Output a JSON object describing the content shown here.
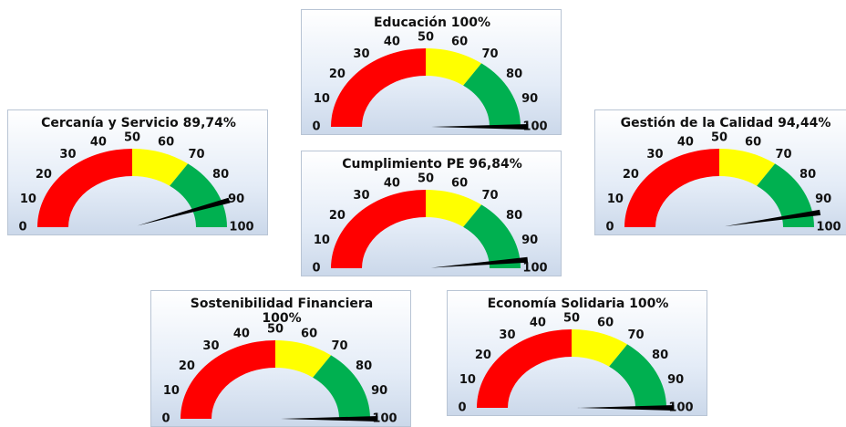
{
  "chart_data": [
    {
      "type": "gauge",
      "title": "Educación 100%",
      "value": 100,
      "ylim": [
        0,
        100
      ],
      "yticks": [
        0,
        10,
        20,
        30,
        40,
        50,
        60,
        70,
        80,
        90,
        100
      ],
      "bands": [
        {
          "from": 0,
          "to": 50,
          "color": "#ff0000"
        },
        {
          "from": 50,
          "to": 70,
          "color": "#ffff00"
        },
        {
          "from": 70,
          "to": 100,
          "color": "#00b050"
        }
      ]
    },
    {
      "type": "gauge",
      "title": "Cercanía y Servicio 89,74%",
      "value": 89.74,
      "ylim": [
        0,
        100
      ],
      "yticks": [
        0,
        10,
        20,
        30,
        40,
        50,
        60,
        70,
        80,
        90,
        100
      ],
      "bands": [
        {
          "from": 0,
          "to": 50,
          "color": "#ff0000"
        },
        {
          "from": 50,
          "to": 70,
          "color": "#ffff00"
        },
        {
          "from": 70,
          "to": 100,
          "color": "#00b050"
        }
      ]
    },
    {
      "type": "gauge",
      "title": "Cumplimiento PE 96,84%",
      "value": 96.84,
      "ylim": [
        0,
        100
      ],
      "yticks": [
        0,
        10,
        20,
        30,
        40,
        50,
        60,
        70,
        80,
        90,
        100
      ],
      "bands": [
        {
          "from": 0,
          "to": 50,
          "color": "#ff0000"
        },
        {
          "from": 50,
          "to": 70,
          "color": "#ffff00"
        },
        {
          "from": 70,
          "to": 100,
          "color": "#00b050"
        }
      ]
    },
    {
      "type": "gauge",
      "title": "Gestión de la Calidad 94,44%",
      "value": 94.44,
      "ylim": [
        0,
        100
      ],
      "yticks": [
        0,
        10,
        20,
        30,
        40,
        50,
        60,
        70,
        80,
        90,
        100
      ],
      "bands": [
        {
          "from": 0,
          "to": 50,
          "color": "#ff0000"
        },
        {
          "from": 50,
          "to": 70,
          "color": "#ffff00"
        },
        {
          "from": 70,
          "to": 100,
          "color": "#00b050"
        }
      ]
    },
    {
      "type": "gauge",
      "title": "Sostenibilidad Financiera",
      "subtitle": "100%",
      "value": 100,
      "ylim": [
        0,
        100
      ],
      "yticks": [
        0,
        10,
        20,
        30,
        40,
        50,
        60,
        70,
        80,
        90,
        100
      ],
      "bands": [
        {
          "from": 0,
          "to": 50,
          "color": "#ff0000"
        },
        {
          "from": 50,
          "to": 70,
          "color": "#ffff00"
        },
        {
          "from": 70,
          "to": 100,
          "color": "#00b050"
        }
      ]
    },
    {
      "type": "gauge",
      "title": "Economía Solidaria 100%",
      "value": 100,
      "ylim": [
        0,
        100
      ],
      "yticks": [
        0,
        10,
        20,
        30,
        40,
        50,
        60,
        70,
        80,
        90,
        100
      ],
      "bands": [
        {
          "from": 0,
          "to": 50,
          "color": "#ff0000"
        },
        {
          "from": 50,
          "to": 70,
          "color": "#ffff00"
        },
        {
          "from": 70,
          "to": 100,
          "color": "#00b050"
        }
      ]
    }
  ]
}
